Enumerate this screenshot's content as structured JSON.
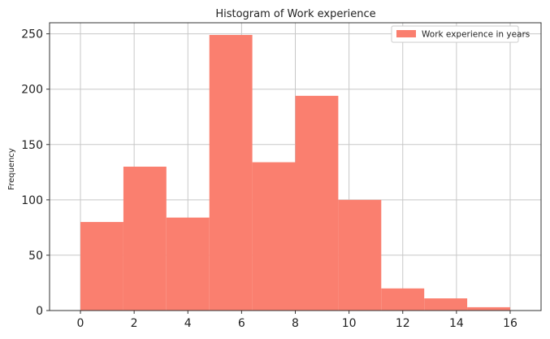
{
  "chart_data": {
    "type": "bar",
    "title": "Histogram of Work experience",
    "xlabel": "",
    "ylabel": "Frequency",
    "xlim": [
      -1.15,
      17.15
    ],
    "ylim": [
      0,
      260
    ],
    "grid": true,
    "legend_position": "top-right",
    "bar_color": "#fa7f6f",
    "series": [
      {
        "name": "Work experience in years",
        "bins": [
          {
            "x0": 0.0,
            "x1": 1.6,
            "value": 80
          },
          {
            "x0": 1.6,
            "x1": 3.2,
            "value": 130
          },
          {
            "x0": 3.2,
            "x1": 4.8,
            "value": 84
          },
          {
            "x0": 4.8,
            "x1": 6.4,
            "value": 249
          },
          {
            "x0": 6.4,
            "x1": 8.0,
            "value": 134
          },
          {
            "x0": 8.0,
            "x1": 9.6,
            "value": 194
          },
          {
            "x0": 9.6,
            "x1": 11.2,
            "value": 100
          },
          {
            "x0": 11.2,
            "x1": 12.8,
            "value": 20
          },
          {
            "x0": 12.8,
            "x1": 14.4,
            "value": 11
          },
          {
            "x0": 14.4,
            "x1": 16.0,
            "value": 3
          }
        ]
      }
    ],
    "x_ticks": [
      0,
      2,
      4,
      6,
      8,
      10,
      12,
      14,
      16
    ],
    "x_tick_labels": [
      "0",
      "2",
      "4",
      "6",
      "8",
      "10",
      "12",
      "14",
      "16"
    ],
    "y_ticks": [
      0,
      50,
      100,
      150,
      200,
      250
    ],
    "y_tick_labels": [
      "0",
      "50",
      "100",
      "150",
      "200",
      "250"
    ]
  }
}
